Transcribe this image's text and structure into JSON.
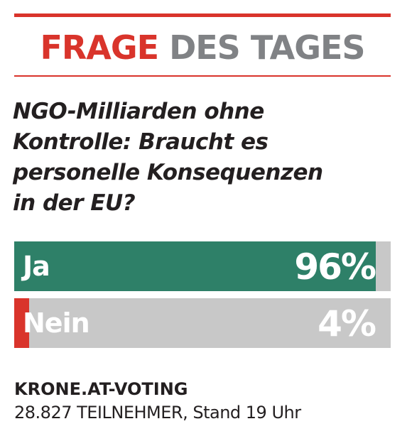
{
  "header": {
    "word1": "FRAGE",
    "word2": "DES TAGES"
  },
  "question_lines": [
    "NGO-Milliarden ohne",
    "Kontrolle: Braucht es",
    "personelle Konsequenzen",
    "in der EU?"
  ],
  "colors": {
    "accent_red": "#d9342b",
    "header_gray": "#808285",
    "ja_green": "#2e8068",
    "track_gray": "#c8c8c8"
  },
  "chart_data": {
    "type": "bar",
    "orientation": "horizontal",
    "categories": [
      "Ja",
      "Nein"
    ],
    "values": [
      96,
      4
    ],
    "value_labels": [
      "96%",
      "4%"
    ],
    "xlim": [
      0,
      100
    ]
  },
  "footer": {
    "source": "KRONE.AT-VOTING",
    "participants": "28.827 TEILNEHMER, Stand 19 Uhr"
  }
}
